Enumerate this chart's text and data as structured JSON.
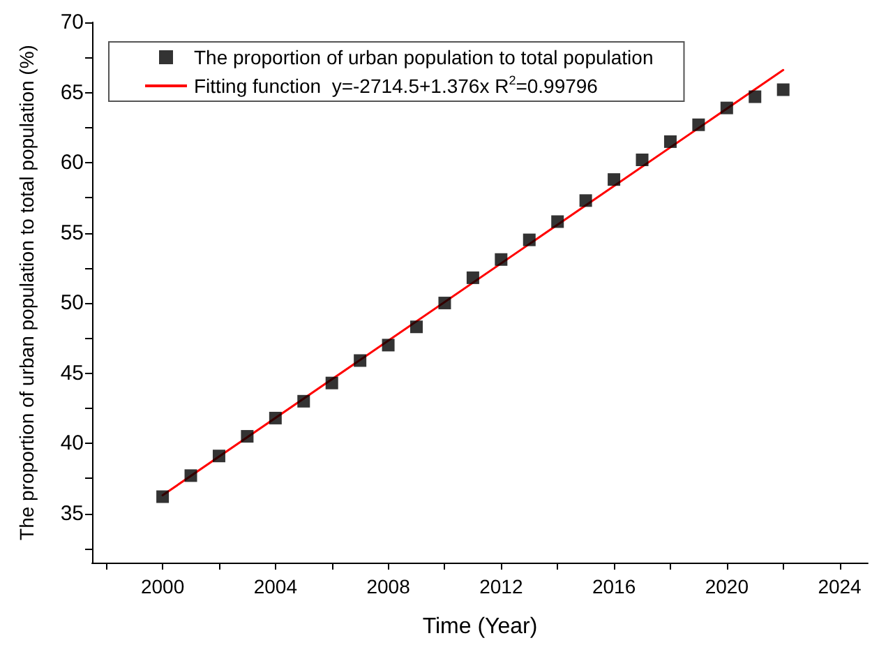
{
  "chart_data": {
    "type": "scatter",
    "xlabel": "Time (Year)",
    "ylabel": "The proportion of urban population to total population (%)",
    "xlim": [
      1997.5,
      2025
    ],
    "ylim": [
      31.5,
      70
    ],
    "xticks": [
      {
        "value": 1998,
        "label": null
      },
      2000,
      {
        "value": 2002,
        "label": null
      },
      2004,
      {
        "value": 2006,
        "label": null
      },
      2008,
      {
        "value": 2010,
        "label": null
      },
      2012,
      {
        "value": 2014,
        "label": null
      },
      2016,
      {
        "value": 2018,
        "label": null
      },
      2020,
      {
        "value": 2022,
        "label": null
      },
      2024
    ],
    "yticks": [
      {
        "value": 32.5,
        "label": null
      },
      35,
      {
        "value": 37.5,
        "label": null
      },
      40,
      {
        "value": 42.5,
        "label": null
      },
      45,
      {
        "value": 47.5,
        "label": null
      },
      50,
      {
        "value": 52.5,
        "label": null
      },
      55,
      {
        "value": 57.5,
        "label": null
      },
      60,
      {
        "value": 62.5,
        "label": null
      },
      65,
      {
        "value": 67.5,
        "label": null
      },
      70
    ],
    "grid": false,
    "legend": "top left",
    "series": [
      {
        "name": "The proportion of urban population to total population",
        "marker": "square",
        "color": "#000000",
        "x": [
          2000,
          2001,
          2002,
          2003,
          2004,
          2005,
          2006,
          2007,
          2008,
          2009,
          2010,
          2011,
          2012,
          2013,
          2014,
          2015,
          2016,
          2017,
          2018,
          2019,
          2020,
          2021,
          2022
        ],
        "values": [
          36.2,
          37.7,
          39.1,
          40.5,
          41.8,
          43.0,
          44.3,
          45.9,
          47.0,
          48.3,
          50.0,
          51.8,
          53.1,
          54.5,
          55.8,
          57.3,
          58.8,
          60.2,
          61.5,
          62.7,
          63.9,
          64.7,
          65.2
        ]
      },
      {
        "name": "Fitting function  y=-2714.5+1.376x R$^{2}$=0.99796",
        "type": "line",
        "marker": "none",
        "color": "#ff0000",
        "x": [
          2000,
          2022
        ],
        "values": [
          36.3,
          66.6
        ]
      }
    ]
  }
}
